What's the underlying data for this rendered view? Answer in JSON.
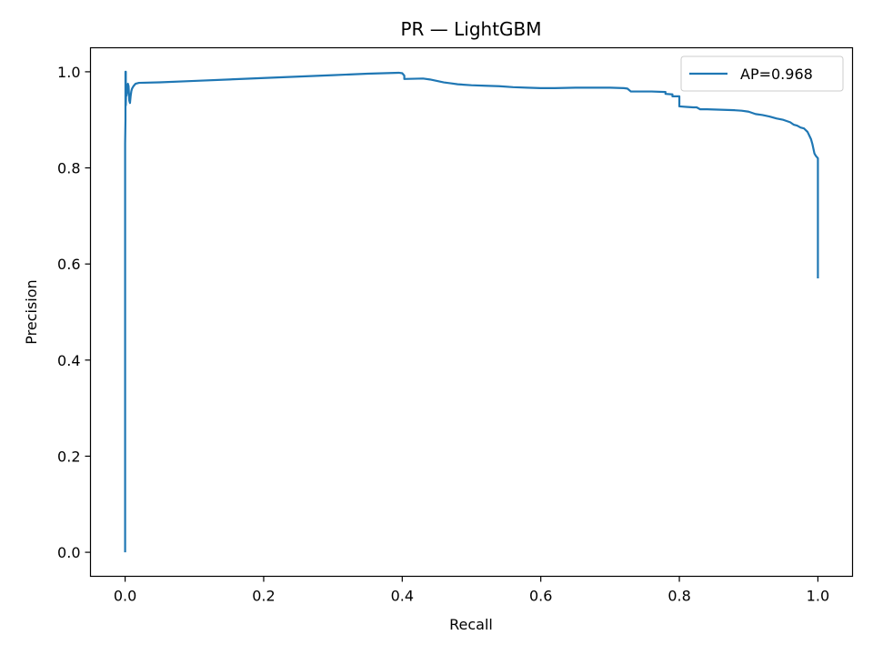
{
  "chart_data": {
    "type": "line",
    "title": "PR — LightGBM",
    "xlabel": "Recall",
    "ylabel": "Precision",
    "xlim": [
      -0.05,
      1.05
    ],
    "ylim": [
      -0.05,
      1.05
    ],
    "xticks": [
      0.0,
      0.2,
      0.4,
      0.6,
      0.8,
      1.0
    ],
    "xtick_labels": [
      "0.0",
      "0.2",
      "0.4",
      "0.6",
      "0.8",
      "1.0"
    ],
    "yticks": [
      0.0,
      0.2,
      0.4,
      0.6,
      0.8,
      1.0
    ],
    "ytick_labels": [
      "0.0",
      "0.2",
      "0.4",
      "0.6",
      "0.8",
      "1.0"
    ],
    "grid": false,
    "legend_position": "top-right",
    "series": [
      {
        "name": "AP=0.968",
        "color": "#1f77b4",
        "x": [
          0.0,
          0.0,
          0.0,
          0.0005,
          0.0005,
          0.001,
          0.001,
          0.0015,
          0.002,
          0.003,
          0.003,
          0.004,
          0.005,
          0.006,
          0.007,
          0.008,
          0.009,
          0.01,
          0.012,
          0.015,
          0.02,
          0.05,
          0.1,
          0.2,
          0.3,
          0.35,
          0.395,
          0.4,
          0.403,
          0.403,
          0.43,
          0.44,
          0.45,
          0.46,
          0.47,
          0.48,
          0.5,
          0.52,
          0.54,
          0.56,
          0.58,
          0.6,
          0.62,
          0.65,
          0.7,
          0.72,
          0.725,
          0.73,
          0.76,
          0.78,
          0.78,
          0.79,
          0.79,
          0.8,
          0.8,
          0.81,
          0.82,
          0.825,
          0.83,
          0.84,
          0.86,
          0.88,
          0.89,
          0.9,
          0.91,
          0.92,
          0.93,
          0.94,
          0.95,
          0.96,
          0.965,
          0.97,
          0.975,
          0.98,
          0.985,
          0.99,
          0.992,
          0.995,
          0.997,
          1.0,
          1.0,
          1.0
        ],
        "y": [
          0.0,
          0.5,
          0.85,
          0.9,
          1.0,
          1.0,
          0.93,
          0.96,
          0.95,
          0.96,
          0.97,
          0.975,
          0.97,
          0.94,
          0.935,
          0.95,
          0.96,
          0.965,
          0.97,
          0.975,
          0.977,
          0.978,
          0.981,
          0.987,
          0.993,
          0.996,
          0.998,
          0.997,
          0.992,
          0.985,
          0.986,
          0.984,
          0.981,
          0.978,
          0.976,
          0.974,
          0.972,
          0.971,
          0.97,
          0.968,
          0.967,
          0.966,
          0.966,
          0.967,
          0.967,
          0.966,
          0.965,
          0.959,
          0.959,
          0.958,
          0.954,
          0.953,
          0.949,
          0.949,
          0.928,
          0.927,
          0.926,
          0.926,
          0.922,
          0.922,
          0.921,
          0.92,
          0.919,
          0.917,
          0.912,
          0.91,
          0.907,
          0.903,
          0.9,
          0.895,
          0.89,
          0.888,
          0.884,
          0.882,
          0.875,
          0.86,
          0.85,
          0.83,
          0.825,
          0.82,
          0.7,
          0.57
        ]
      }
    ]
  }
}
